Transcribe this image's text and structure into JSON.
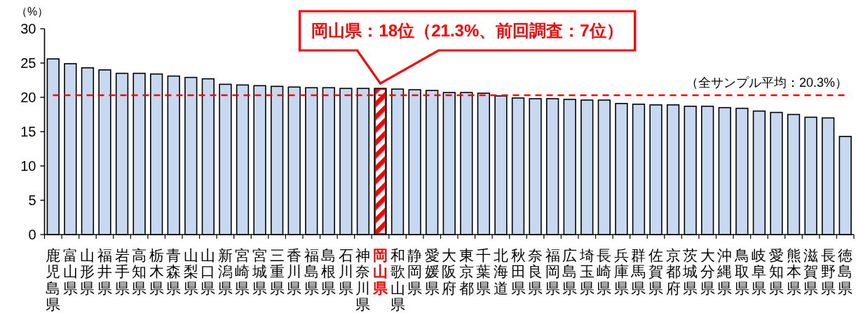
{
  "chart_data": {
    "type": "bar",
    "ylabel": "（%）",
    "categories": [
      "鹿児島県",
      "富山県",
      "山形県",
      "福井県",
      "岩手県",
      "高知県",
      "栃木県",
      "青森県",
      "山梨県",
      "山口県",
      "新潟県",
      "宮崎県",
      "宮城県",
      "三重県",
      "香川県",
      "福島県",
      "島根県",
      "石川県",
      "神奈川県",
      "岡山県",
      "和歌山県",
      "静岡県",
      "愛媛県",
      "大阪府",
      "東京都",
      "千葉県",
      "北海道",
      "秋田県",
      "奈良県",
      "福岡県",
      "広島県",
      "埼玉県",
      "長崎県",
      "兵庫県",
      "群馬県",
      "佐賀県",
      "京都府",
      "茨城県",
      "大分県",
      "沖縄県",
      "鳥取県",
      "岐阜県",
      "愛知県",
      "熊本県",
      "滋賀県",
      "長野県",
      "徳島県"
    ],
    "values": [
      25.6,
      24.9,
      24.3,
      24.0,
      23.5,
      23.5,
      23.4,
      23.1,
      22.9,
      22.7,
      21.9,
      21.8,
      21.7,
      21.6,
      21.5,
      21.4,
      21.4,
      21.3,
      21.3,
      21.3,
      21.2,
      21.1,
      21.0,
      20.7,
      20.7,
      20.6,
      20.2,
      19.9,
      19.8,
      19.8,
      19.7,
      19.6,
      19.6,
      19.1,
      19.0,
      18.9,
      18.9,
      18.7,
      18.7,
      18.5,
      18.4,
      18.0,
      17.8,
      17.5,
      17.1,
      17.0,
      14.3
    ],
    "colors": [
      "#c6d9f1",
      "#c6d9f1",
      "#c6d9f1",
      "#c6d9f1",
      "#c6d9f1",
      "#c6d9f1",
      "#c6d9f1",
      "#c6d9f1",
      "#c6d9f1",
      "#c6d9f1",
      "#c6d9f1",
      "#c6d9f1",
      "#c6d9f1",
      "#c6d9f1",
      "#c6d9f1",
      "#c6d9f1",
      "#c6d9f1",
      "#c6d9f1",
      "#c6d9f1",
      "#ff0000",
      "#c6d9f1",
      "#c6d9f1",
      "#c6d9f1",
      "#c6d9f1",
      "#c6d9f1",
      "#c6d9f1",
      "#c6d9f1",
      "#c6d9f1",
      "#c6d9f1",
      "#c6d9f1",
      "#c6d9f1",
      "#c6d9f1",
      "#c6d9f1",
      "#c6d9f1",
      "#c6d9f1",
      "#c6d9f1",
      "#c6d9f1",
      "#c6d9f1",
      "#c6d9f1",
      "#c6d9f1",
      "#c6d9f1",
      "#c6d9f1",
      "#c6d9f1",
      "#c6d9f1",
      "#c6d9f1",
      "#c6d9f1",
      "#c6d9f1"
    ],
    "ylim": [
      0,
      30
    ],
    "yticks": [
      0,
      5,
      10,
      15,
      20,
      25,
      30
    ],
    "ref_lines": [
      {
        "axis": "y",
        "value": 20.3,
        "label": "（全サンプル平均：20.3%）",
        "color": "#ff0000",
        "line_style": "dashed"
      }
    ],
    "annotations": [
      {
        "text": "岡山県：18位（21.3%、前回調査：7位）",
        "x": "岡山県",
        "y": 21.3
      }
    ]
  }
}
